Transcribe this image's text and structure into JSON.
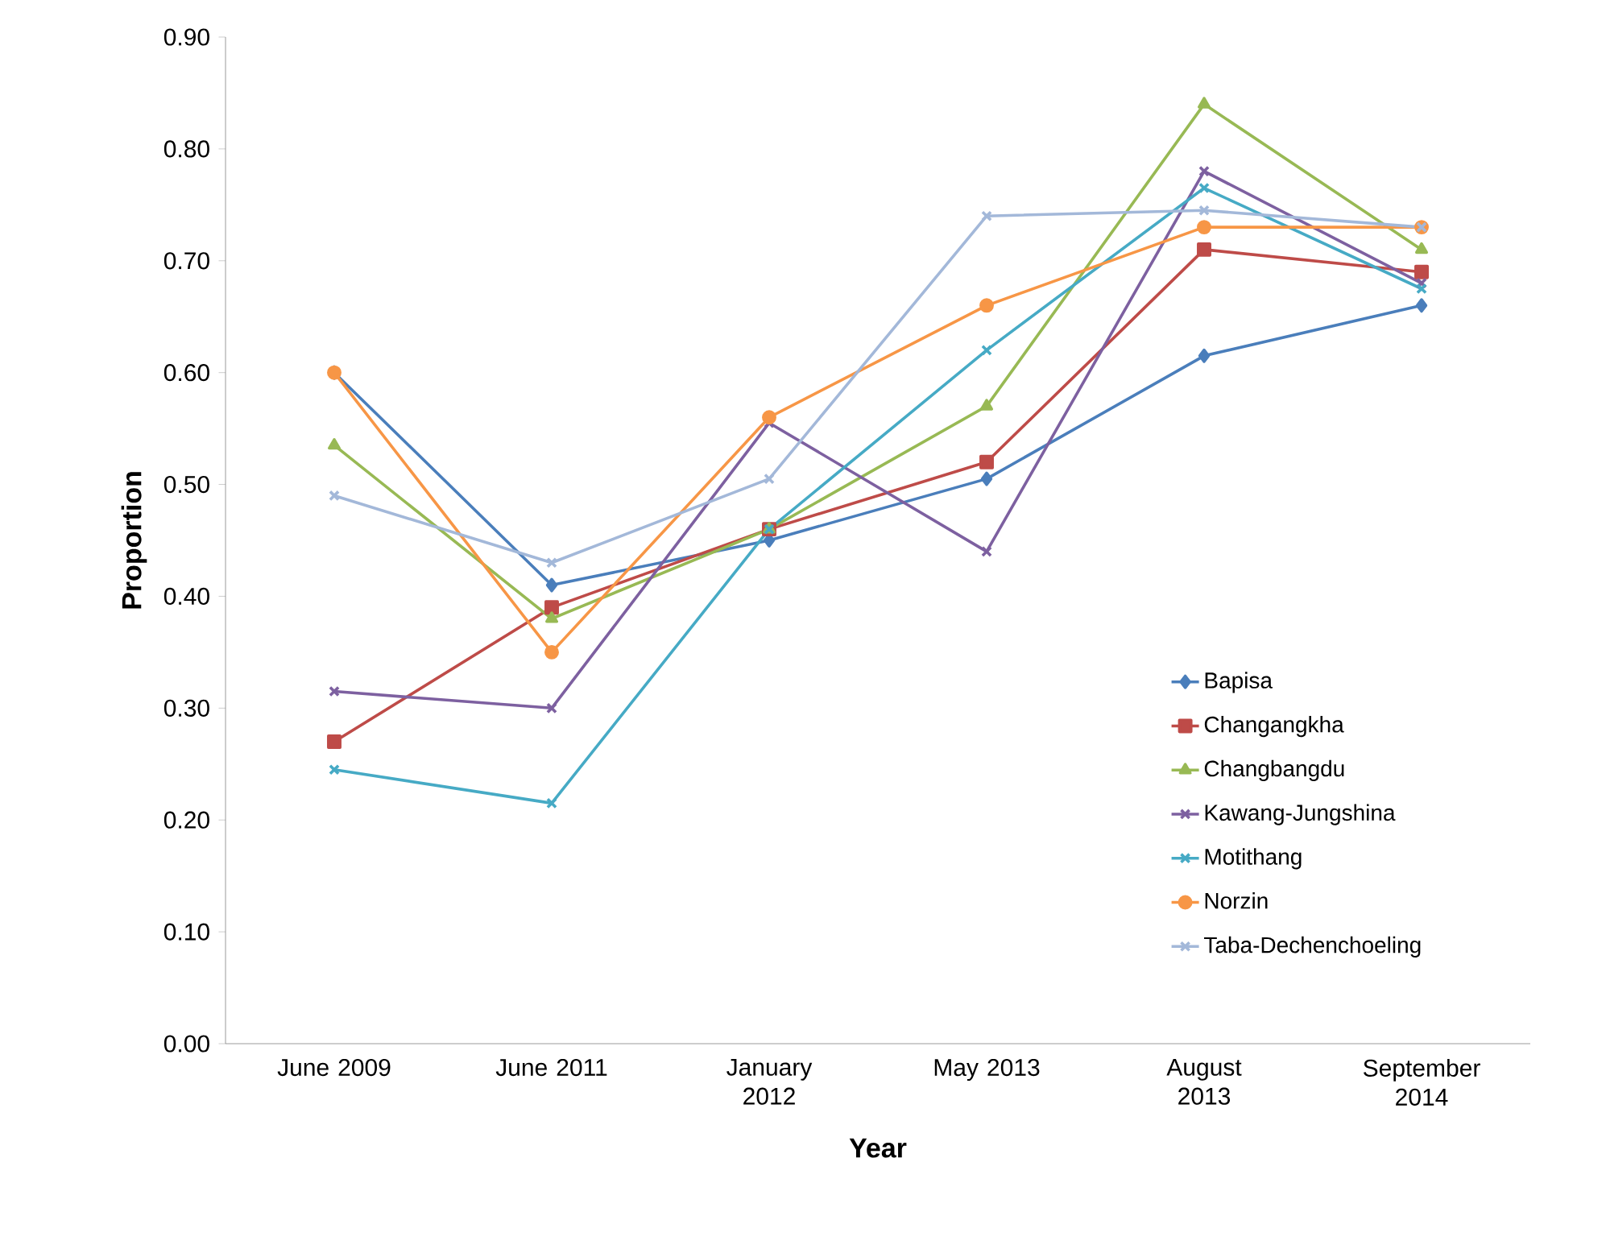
{
  "chart_data": {
    "type": "line",
    "xlabel": "Year",
    "ylabel": "Proportion",
    "categories": [
      "June 2009",
      "June 2011",
      "January 2012",
      "May 2013",
      "August 2013",
      "September 2014"
    ],
    "ylim": [
      0,
      0.9
    ],
    "yticks": [
      {
        "value": 0,
        "label": "0.00"
      },
      {
        "value": 0.1,
        "label": "0.10"
      },
      {
        "value": 0.2,
        "label": "0.20"
      },
      {
        "value": 0.3,
        "label": "0.30"
      },
      {
        "value": 0.4,
        "label": "0.40"
      },
      {
        "value": 0.5,
        "label": "0.50"
      },
      {
        "value": 0.6,
        "label": "0.60"
      },
      {
        "value": 0.7,
        "label": "0.70"
      },
      {
        "value": 0.8,
        "label": "0.80"
      },
      {
        "value": 0.9,
        "label": "0.90"
      }
    ],
    "grid": false,
    "legend": "right",
    "line_style": "solid",
    "series": [
      {
        "name": "Bapisa",
        "color": "#4a7ebb",
        "marker": "diamond",
        "values": [
          0.6,
          0.41,
          0.45,
          0.505,
          0.615,
          0.66
        ]
      },
      {
        "name": "Changangkha",
        "color": "#be4b48",
        "marker": "square",
        "values": [
          0.27,
          0.39,
          0.46,
          0.52,
          0.71,
          0.69
        ]
      },
      {
        "name": "Changbangdu",
        "color": "#98b954",
        "marker": "triangle",
        "values": [
          0.535,
          0.38,
          0.46,
          0.57,
          0.84,
          0.71
        ]
      },
      {
        "name": "Kawang-Jungshina",
        "color": "#7d60a0",
        "marker": "cross",
        "values": [
          0.315,
          0.3,
          0.555,
          0.44,
          0.78,
          0.68
        ]
      },
      {
        "name": "Motithang",
        "color": "#46aac5",
        "marker": "cross",
        "values": [
          0.245,
          0.215,
          0.46,
          0.62,
          0.765,
          0.675
        ]
      },
      {
        "name": "Norzin",
        "color": "#f79646",
        "marker": "circle",
        "values": [
          0.6,
          0.35,
          0.56,
          0.66,
          0.73,
          0.73
        ]
      },
      {
        "name": "Taba-Dechenchoeling",
        "color": "#a3b8d9",
        "marker": "cross",
        "values": [
          0.49,
          0.43,
          0.505,
          0.74,
          0.745,
          0.73
        ]
      }
    ]
  }
}
